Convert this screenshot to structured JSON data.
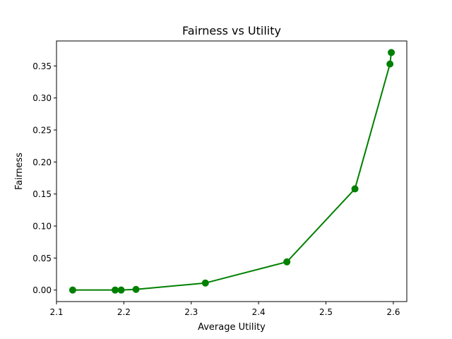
{
  "chart_data": {
    "type": "line",
    "title": "Fairness vs Utility",
    "xlabel": "Average Utility",
    "ylabel": "Fairness",
    "xlim": [
      2.1,
      2.62
    ],
    "ylim": [
      -0.018,
      0.389
    ],
    "x_ticks": [
      "2.1",
      "2.2",
      "2.3",
      "2.4",
      "2.5",
      "2.6"
    ],
    "y_ticks": [
      "0.00",
      "0.05",
      "0.10",
      "0.15",
      "0.20",
      "0.25",
      "0.30",
      "0.35"
    ],
    "grid": false,
    "series": [
      {
        "color": "#008000",
        "marker": "circle",
        "x": [
          2.124,
          2.187,
          2.196,
          2.218,
          2.321,
          2.442,
          2.543,
          2.595,
          2.597
        ],
        "y": [
          0.0,
          0.0,
          0.0,
          0.001,
          0.011,
          0.044,
          0.158,
          0.353,
          0.371
        ]
      }
    ]
  }
}
